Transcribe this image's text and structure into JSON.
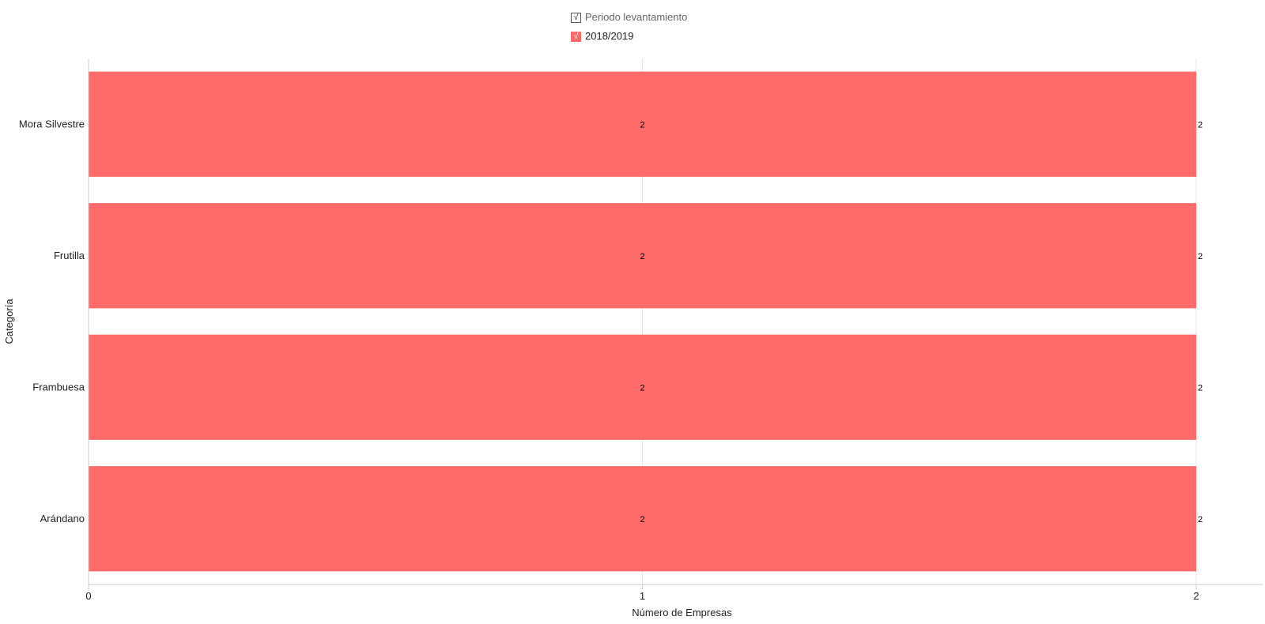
{
  "legend": {
    "group_label": "Periodo levantamiento",
    "series_label": "2018/2019",
    "check_glyph": "√"
  },
  "chart_data": {
    "type": "bar",
    "orientation": "horizontal",
    "categories": [
      "Mora Silvestre",
      "Frutilla",
      "Frambuesa",
      "Arándano"
    ],
    "series": [
      {
        "name": "2018/2019",
        "values": [
          2,
          2,
          2,
          2
        ],
        "color": "#ff6a6a"
      }
    ],
    "xlabel": "Número de Empresas",
    "ylabel": "Categoría",
    "xlim": [
      0,
      2
    ],
    "x_ticks": [
      0,
      1,
      2
    ],
    "grid": true,
    "legend_position": "top-center",
    "data_labels": true
  },
  "colors": {
    "bar": "#ff6a6a",
    "grid": "#e6e6e6",
    "axis": "#cccccc",
    "text": "#222222"
  }
}
